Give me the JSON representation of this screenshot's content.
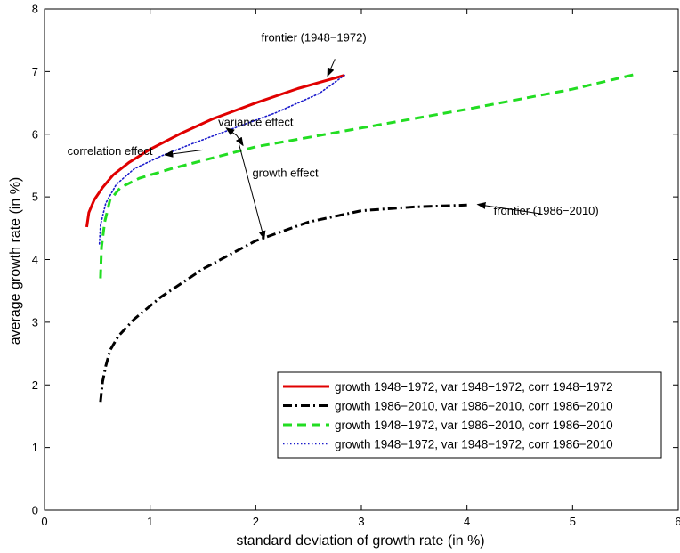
{
  "chart_data": {
    "type": "line",
    "xlabel": "standard deviation of growth rate (in %)",
    "ylabel": "average growth rate (in %)",
    "xlim": [
      0,
      6
    ],
    "ylim": [
      0,
      8
    ],
    "xticks": [
      "0",
      "1",
      "2",
      "3",
      "4",
      "5",
      "6"
    ],
    "yticks": [
      "0",
      "1",
      "2",
      "3",
      "4",
      "5",
      "6",
      "7",
      "8"
    ],
    "grid": false,
    "legend_position": "bottom-right",
    "series": [
      {
        "name": "growth 1948−1972, var 1948−1972, corr 1948−1972",
        "color": "#e00000",
        "style": "solid",
        "points": [
          [
            0.4,
            4.52
          ],
          [
            0.42,
            4.75
          ],
          [
            0.47,
            4.95
          ],
          [
            0.55,
            5.15
          ],
          [
            0.65,
            5.35
          ],
          [
            0.8,
            5.55
          ],
          [
            1.0,
            5.76
          ],
          [
            1.3,
            6.02
          ],
          [
            1.6,
            6.25
          ],
          [
            2.0,
            6.5
          ],
          [
            2.4,
            6.73
          ],
          [
            2.84,
            6.94
          ]
        ]
      },
      {
        "name": "growth 1986−2010, var 1986−2010, corr 1986−2010",
        "color": "#000000",
        "style": "dashdot",
        "points": [
          [
            0.53,
            1.73
          ],
          [
            0.55,
            2.05
          ],
          [
            0.58,
            2.3
          ],
          [
            0.62,
            2.55
          ],
          [
            0.7,
            2.78
          ],
          [
            0.85,
            3.05
          ],
          [
            1.1,
            3.4
          ],
          [
            1.5,
            3.85
          ],
          [
            2.0,
            4.3
          ],
          [
            2.5,
            4.6
          ],
          [
            3.0,
            4.78
          ],
          [
            3.5,
            4.84
          ],
          [
            4.0,
            4.87
          ]
        ]
      },
      {
        "name": "growth 1948−1972, var 1986−2010, corr 1986−2010",
        "color": "#22dd22",
        "style": "dashed",
        "points": [
          [
            0.53,
            3.7
          ],
          [
            0.54,
            4.2
          ],
          [
            0.57,
            4.6
          ],
          [
            0.62,
            4.95
          ],
          [
            0.72,
            5.15
          ],
          [
            0.9,
            5.3
          ],
          [
            1.2,
            5.45
          ],
          [
            2.0,
            5.8
          ],
          [
            3.0,
            6.1
          ],
          [
            4.0,
            6.4
          ],
          [
            5.0,
            6.72
          ],
          [
            5.58,
            6.95
          ]
        ]
      },
      {
        "name": "growth 1948−1972, var 1948−1972, corr 1986−2010",
        "color": "#1a1acc",
        "style": "dotted",
        "points": [
          [
            0.52,
            4.25
          ],
          [
            0.53,
            4.55
          ],
          [
            0.58,
            4.9
          ],
          [
            0.68,
            5.2
          ],
          [
            0.85,
            5.45
          ],
          [
            1.1,
            5.65
          ],
          [
            1.4,
            5.85
          ],
          [
            1.8,
            6.1
          ],
          [
            2.2,
            6.35
          ],
          [
            2.6,
            6.65
          ],
          [
            2.84,
            6.94
          ]
        ]
      }
    ],
    "annotations": [
      {
        "text": "frontier (1948−1972)",
        "tx": 2.55,
        "ty": 7.48,
        "ax": 2.68,
        "ay": 6.93
      },
      {
        "text": "variance effect",
        "tx": 2.0,
        "ty": 6.13,
        "ax": 1.88,
        "ay": 5.82
      },
      {
        "text": "correlation effect",
        "tx": 0.62,
        "ty": 5.67,
        "ax": 1.14,
        "ay": 5.67
      },
      {
        "text": "growth effect",
        "tx": 2.28,
        "ty": 5.32,
        "ax": 2.08,
        "ay": 4.33
      },
      {
        "text": "frontier (1986−2010)",
        "tx": 4.75,
        "ty": 4.72,
        "ax": 4.1,
        "ay": 4.88
      }
    ],
    "annotation_lines": [
      {
        "from": [
          1.82,
          5.98
        ],
        "to": [
          1.88,
          5.82
        ]
      },
      {
        "from": [
          1.82,
          5.98
        ],
        "to": [
          1.72,
          6.1
        ]
      },
      {
        "from": [
          1.84,
          5.85
        ],
        "to": [
          2.08,
          4.33
        ]
      },
      {
        "from": [
          1.5,
          5.75
        ],
        "to": [
          1.14,
          5.67
        ]
      },
      {
        "from": [
          4.7,
          4.73
        ],
        "to": [
          4.1,
          4.88
        ]
      }
    ]
  }
}
